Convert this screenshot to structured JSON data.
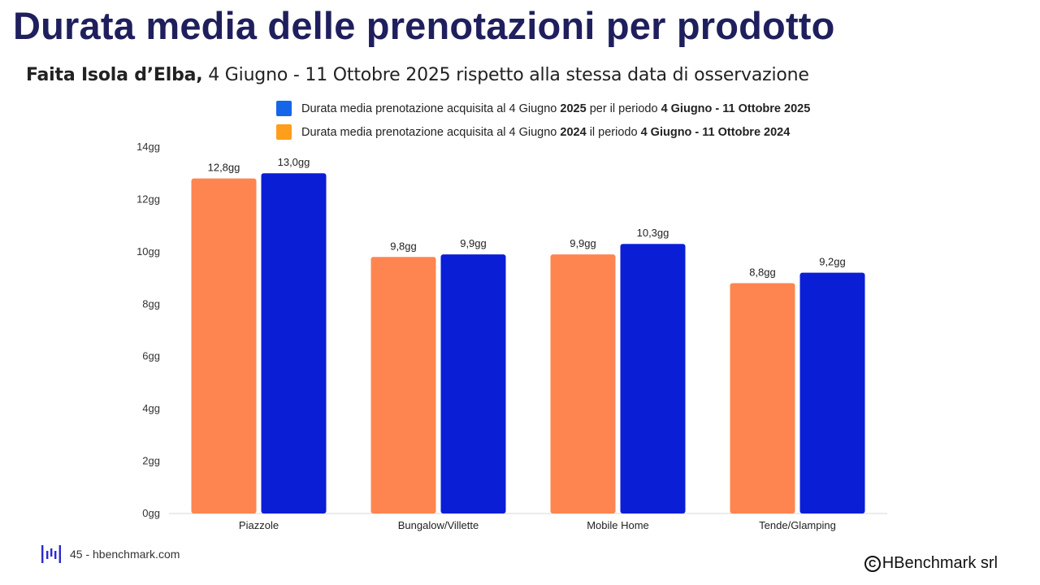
{
  "title": "Durata media delle prenotazioni per prodotto",
  "subtitle": {
    "bold": "Faita Isola d’Elba,",
    "rest": " 4 Giugno - 11 Ottobre 2025 rispetto alla stessa data di osservazione"
  },
  "legend": [
    {
      "color": "#1565e8",
      "parts": [
        "Durata media prenotazione acquisita al 4 Giugno ",
        "2025",
        " per il periodo ",
        "4 Giugno - 11 Ottobre 2025"
      ]
    },
    {
      "color": "#ff9e1b",
      "parts": [
        "Durata media prenotazione acquisita al 4 Giugno ",
        "2024",
        " il periodo ",
        "4 Giugno - 11 Ottobre 2024"
      ]
    }
  ],
  "chart_data": {
    "type": "bar",
    "categories": [
      "Piazzole",
      "Bungalow/Villette",
      "Mobile Home",
      "Tende/Glamping"
    ],
    "series": [
      {
        "name": "2024",
        "color": "#fe8550",
        "values": [
          12.8,
          9.8,
          9.9,
          8.8
        ],
        "labels": [
          "12,8gg",
          "9,8gg",
          "9,9gg",
          "8,8gg"
        ]
      },
      {
        "name": "2025",
        "color": "#0a1ed6",
        "values": [
          13.0,
          9.9,
          10.3,
          9.2
        ],
        "labels": [
          "13,0gg",
          "9,9gg",
          "10,3gg",
          "9,2gg"
        ]
      }
    ],
    "yticks": [
      "0gg",
      "2gg",
      "4gg",
      "6gg",
      "8gg",
      "10gg",
      "12gg",
      "14gg"
    ],
    "ylim": [
      0,
      14
    ],
    "grid": false
  },
  "footer": {
    "text": "45 - hbenchmark.com"
  },
  "copyright": {
    "text": "HBenchmark srl",
    "symbol": "C"
  }
}
